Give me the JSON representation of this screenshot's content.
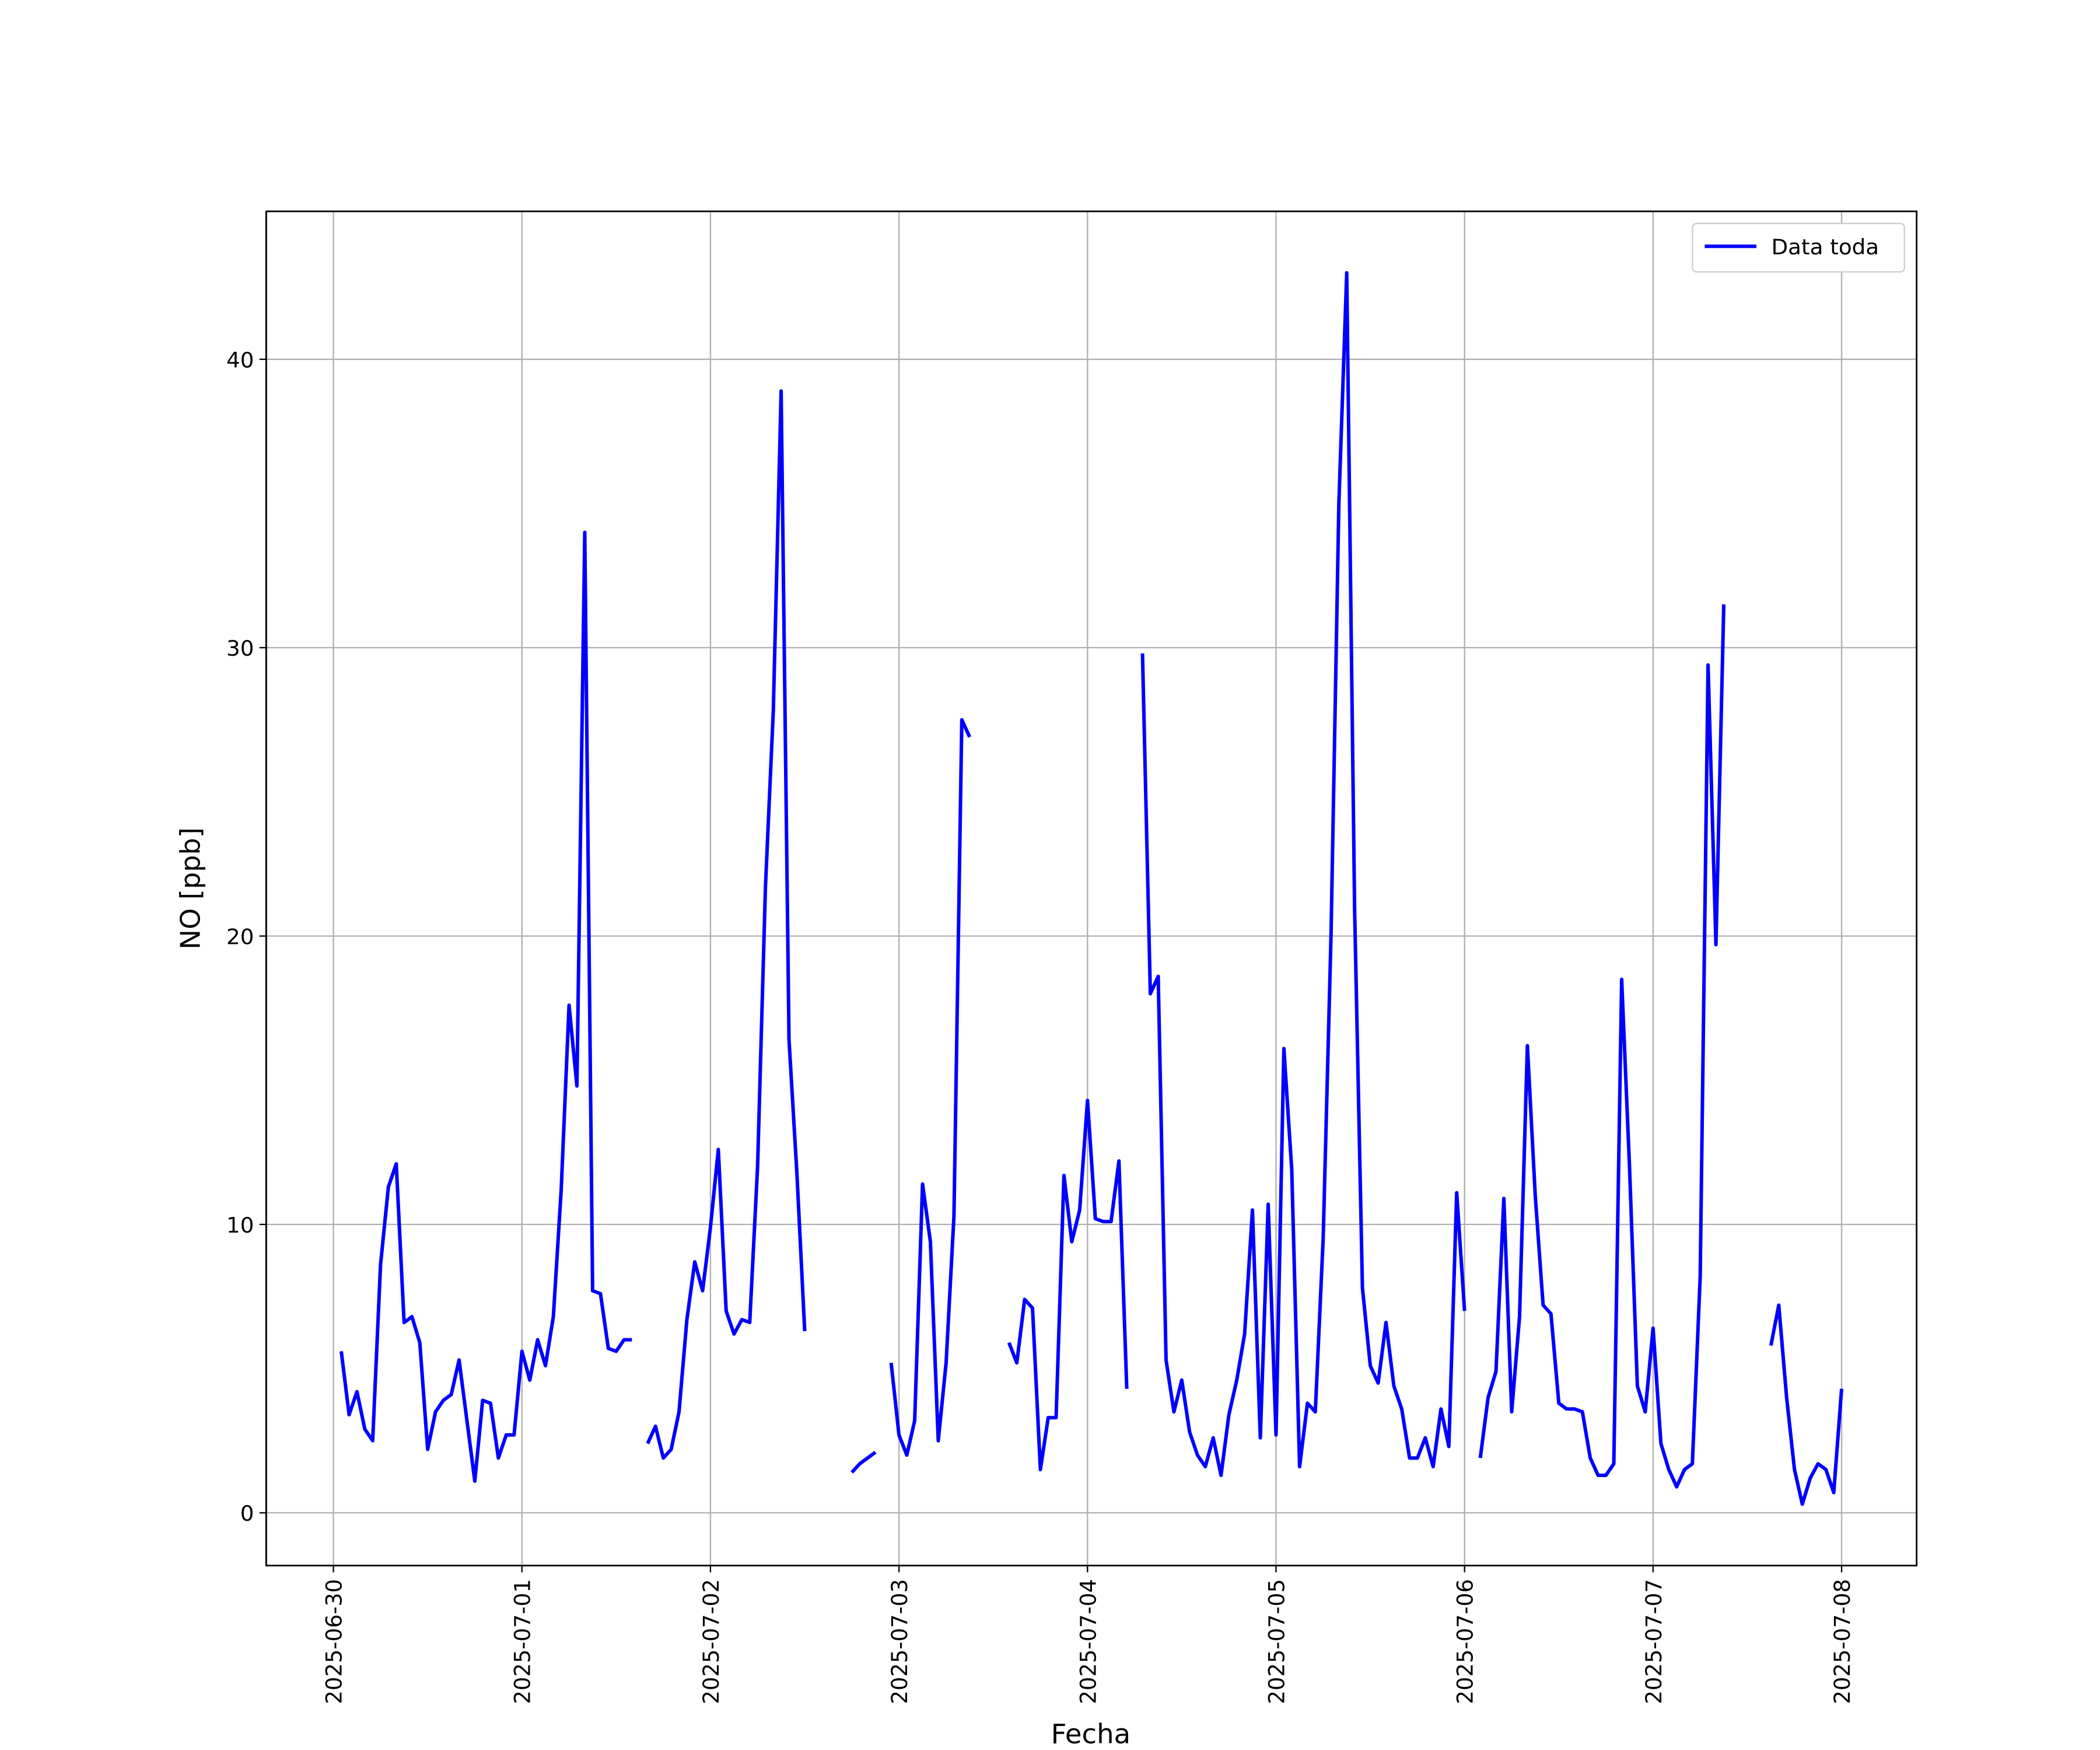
{
  "chart_data": {
    "type": "line",
    "xlabel": "Fecha",
    "ylabel": "NO [ppb]",
    "x": [
      "2025-06-30 01:00",
      "2025-06-30 02:00",
      "2025-06-30 03:00",
      "2025-06-30 04:00",
      "2025-06-30 05:00",
      "2025-06-30 06:00",
      "2025-06-30 07:00",
      "2025-06-30 08:00",
      "2025-06-30 09:00",
      "2025-06-30 10:00",
      "2025-06-30 11:00",
      "2025-06-30 12:00",
      "2025-06-30 13:00",
      "2025-06-30 14:00",
      "2025-06-30 15:00",
      "2025-06-30 16:00",
      "2025-06-30 17:00",
      "2025-06-30 18:00",
      "2025-06-30 19:00",
      "2025-06-30 20:00",
      "2025-06-30 21:00",
      "2025-06-30 22:00",
      "2025-06-30 23:00",
      "2025-07-01 00:00",
      "2025-07-01 01:00",
      "2025-07-01 02:00",
      "2025-07-01 03:00",
      "2025-07-01 04:00",
      "2025-07-01 05:00",
      "2025-07-01 06:00",
      "2025-07-01 07:00",
      "2025-07-01 08:00",
      "2025-07-01 09:00",
      "2025-07-01 10:00",
      "2025-07-01 11:00",
      "2025-07-01 12:00",
      "2025-07-01 13:00",
      "2025-07-01 14:00",
      "2025-07-01 15:00",
      "2025-07-01 16:00",
      "2025-07-01 17:00",
      "2025-07-01 18:00",
      "2025-07-01 19:00",
      "2025-07-01 20:00",
      "2025-07-01 21:00",
      "2025-07-01 22:00",
      "2025-07-01 23:00",
      "2025-07-02 00:00",
      "2025-07-02 01:00",
      "2025-07-02 02:00",
      "2025-07-02 03:00",
      "2025-07-02 04:00",
      "2025-07-02 05:00",
      "2025-07-02 06:00",
      "2025-07-02 07:00",
      "2025-07-02 08:00",
      "2025-07-02 09:00",
      "2025-07-02 10:00",
      "2025-07-02 11:00",
      "2025-07-02 12:00",
      "2025-07-02 13:00",
      "2025-07-02 14:00",
      "2025-07-02 15:00",
      "2025-07-02 16:00",
      "2025-07-02 17:00",
      "2025-07-02 18:00",
      "2025-07-02 19:00",
      "2025-07-02 20:00",
      "2025-07-02 21:00",
      "2025-07-02 22:00",
      "2025-07-02 23:00",
      "2025-07-03 00:00",
      "2025-07-03 01:00",
      "2025-07-03 02:00",
      "2025-07-03 03:00",
      "2025-07-03 04:00",
      "2025-07-03 05:00",
      "2025-07-03 06:00",
      "2025-07-03 07:00",
      "2025-07-03 08:00",
      "2025-07-03 09:00",
      "2025-07-03 10:00",
      "2025-07-03 11:00",
      "2025-07-03 12:00",
      "2025-07-03 13:00",
      "2025-07-03 14:00",
      "2025-07-03 15:00",
      "2025-07-03 16:00",
      "2025-07-03 17:00",
      "2025-07-03 18:00",
      "2025-07-03 19:00",
      "2025-07-03 20:00",
      "2025-07-03 21:00",
      "2025-07-03 22:00",
      "2025-07-03 23:00",
      "2025-07-04 00:00",
      "2025-07-04 01:00",
      "2025-07-04 02:00",
      "2025-07-04 03:00",
      "2025-07-04 04:00",
      "2025-07-04 05:00",
      "2025-07-04 06:00",
      "2025-07-04 07:00",
      "2025-07-04 08:00",
      "2025-07-04 09:00",
      "2025-07-04 10:00",
      "2025-07-04 11:00",
      "2025-07-04 12:00",
      "2025-07-04 13:00",
      "2025-07-04 14:00",
      "2025-07-04 15:00",
      "2025-07-04 16:00",
      "2025-07-04 17:00",
      "2025-07-04 18:00",
      "2025-07-04 19:00",
      "2025-07-04 20:00",
      "2025-07-04 21:00",
      "2025-07-04 22:00",
      "2025-07-04 23:00",
      "2025-07-05 00:00",
      "2025-07-05 01:00",
      "2025-07-05 02:00",
      "2025-07-05 03:00",
      "2025-07-05 04:00",
      "2025-07-05 05:00",
      "2025-07-05 06:00",
      "2025-07-05 07:00",
      "2025-07-05 08:00",
      "2025-07-05 09:00",
      "2025-07-05 10:00",
      "2025-07-05 11:00",
      "2025-07-05 12:00",
      "2025-07-05 13:00",
      "2025-07-05 14:00",
      "2025-07-05 15:00",
      "2025-07-05 16:00",
      "2025-07-05 17:00",
      "2025-07-05 18:00",
      "2025-07-05 19:00",
      "2025-07-05 20:00",
      "2025-07-05 21:00",
      "2025-07-05 22:00",
      "2025-07-05 23:00",
      "2025-07-06 00:00",
      "2025-07-06 01:00",
      "2025-07-06 02:00",
      "2025-07-06 03:00",
      "2025-07-06 04:00",
      "2025-07-06 05:00",
      "2025-07-06 06:00",
      "2025-07-06 07:00",
      "2025-07-06 08:00",
      "2025-07-06 09:00",
      "2025-07-06 10:00",
      "2025-07-06 11:00",
      "2025-07-06 12:00",
      "2025-07-06 13:00",
      "2025-07-06 14:00",
      "2025-07-06 15:00",
      "2025-07-06 16:00",
      "2025-07-06 17:00",
      "2025-07-06 18:00",
      "2025-07-06 19:00",
      "2025-07-06 20:00",
      "2025-07-06 21:00",
      "2025-07-06 22:00",
      "2025-07-06 23:00",
      "2025-07-07 00:00",
      "2025-07-07 01:00",
      "2025-07-07 02:00",
      "2025-07-07 03:00",
      "2025-07-07 04:00",
      "2025-07-07 05:00",
      "2025-07-07 06:00",
      "2025-07-07 07:00",
      "2025-07-07 08:00",
      "2025-07-07 09:00",
      "2025-07-07 10:00",
      "2025-07-07 11:00",
      "2025-07-07 12:00",
      "2025-07-07 13:00",
      "2025-07-07 14:00",
      "2025-07-07 15:00",
      "2025-07-07 16:00",
      "2025-07-07 17:00",
      "2025-07-07 18:00",
      "2025-07-07 19:00",
      "2025-07-07 20:00",
      "2025-07-07 21:00",
      "2025-07-07 22:00",
      "2025-07-07 23:00",
      "2025-07-08 00:00"
    ],
    "series": [
      {
        "name": "Data toda",
        "color": "#0000ff",
        "values": [
          5.6,
          3.4,
          4.2,
          2.9,
          2.5,
          8.6,
          11.3,
          12.1,
          6.6,
          6.8,
          5.9,
          2.2,
          3.5,
          3.9,
          4.1,
          5.3,
          3.2,
          1.1,
          3.9,
          3.8,
          1.9,
          2.7,
          2.7,
          5.6,
          4.6,
          6.0,
          5.1,
          6.8,
          11.2,
          17.6,
          14.8,
          34.0,
          7.7,
          7.6,
          5.7,
          5.6,
          6.0,
          6.0,
          null,
          2.4,
          3.0,
          1.9,
          2.2,
          3.5,
          6.7,
          8.7,
          7.7,
          9.9,
          12.6,
          7.0,
          6.2,
          6.7,
          6.6,
          12.0,
          21.7,
          27.8,
          38.9,
          16.4,
          11.8,
          6.3,
          null,
          null,
          null,
          null,
          null,
          1.4,
          1.7,
          1.9,
          2.1,
          null,
          5.2,
          2.7,
          2.0,
          3.2,
          11.4,
          9.4,
          2.5,
          5.2,
          10.3,
          27.5,
          26.9,
          null,
          null,
          null,
          null,
          5.9,
          5.2,
          7.4,
          7.1,
          1.5,
          3.3,
          3.3,
          11.7,
          9.4,
          10.5,
          14.3,
          10.2,
          10.1,
          10.1,
          12.2,
          4.3,
          null,
          29.8,
          18.0,
          18.6,
          5.3,
          3.5,
          4.6,
          2.8,
          2.0,
          1.6,
          2.6,
          1.3,
          3.4,
          4.6,
          6.2,
          10.5,
          2.6,
          10.7,
          2.7,
          16.1,
          11.9,
          1.6,
          3.8,
          3.5,
          9.5,
          20.0,
          35.0,
          43.0,
          21.0,
          7.8,
          5.1,
          4.5,
          6.6,
          4.4,
          3.6,
          1.9,
          1.9,
          2.6,
          1.6,
          3.6,
          2.3,
          11.1,
          7.0,
          null,
          1.9,
          4.0,
          4.9,
          10.9,
          3.5,
          6.8,
          16.2,
          11.0,
          7.2,
          6.9,
          3.8,
          3.6,
          3.6,
          3.5,
          1.9,
          1.3,
          1.3,
          1.7,
          18.5,
          12.0,
          4.4,
          3.5,
          6.4,
          2.4,
          1.5,
          0.9,
          1.5,
          1.7,
          8.2,
          29.4,
          19.7,
          31.5,
          null,
          null,
          null,
          null,
          null,
          5.8,
          7.2,
          4.0,
          1.5,
          0.3,
          1.2,
          1.7,
          1.5,
          0.7,
          4.3
        ]
      }
    ],
    "xlim": [
      "2025-06-29 15:27",
      "2025-07-08 09:33"
    ],
    "xticks": [
      "2025-06-30",
      "2025-07-01",
      "2025-07-02",
      "2025-07-03",
      "2025-07-04",
      "2025-07-05",
      "2025-07-06",
      "2025-07-07",
      "2025-07-08"
    ],
    "ylim": [
      -1.83,
      45.13
    ],
    "yticks": [
      0,
      10,
      20,
      30,
      40
    ],
    "grid": true,
    "legend": "upper right"
  }
}
